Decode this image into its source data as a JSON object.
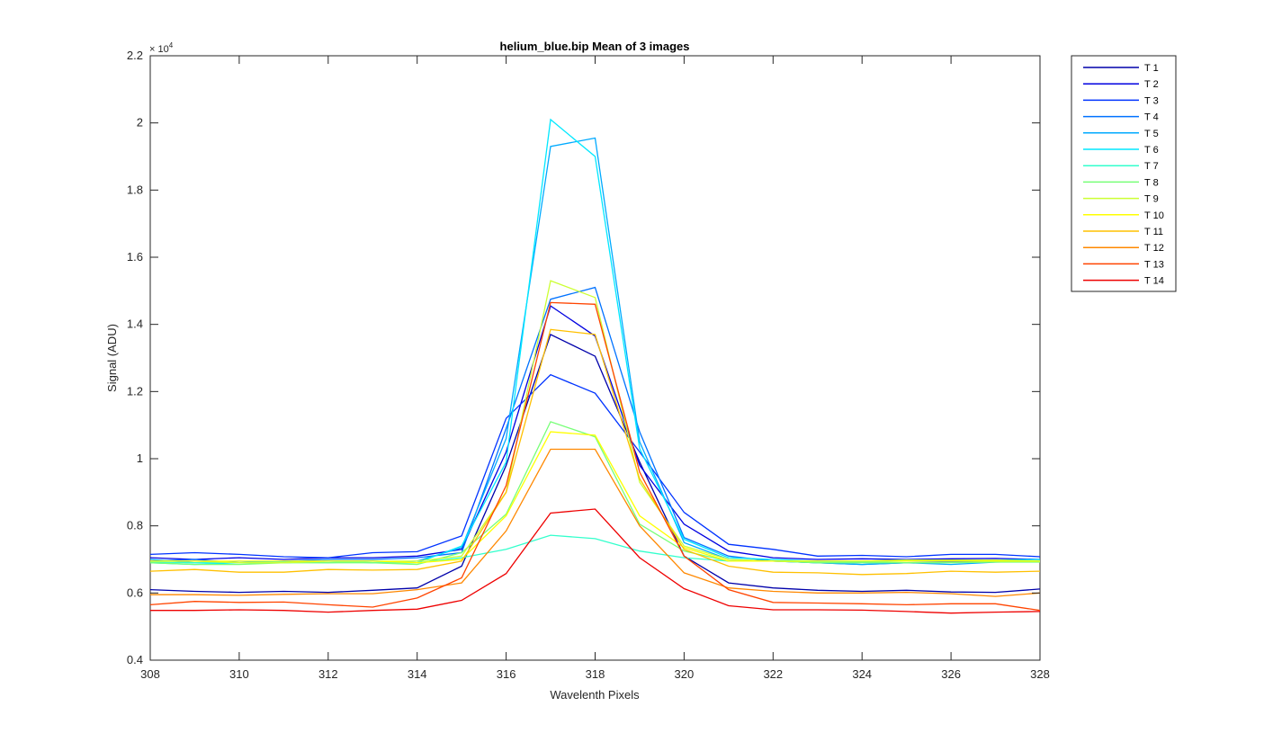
{
  "chart_data": {
    "type": "line",
    "title": "helium_blue.bip  Mean of 3 images",
    "xlabel": "Wavelenth Pixels",
    "ylabel": "Signal (ADU)",
    "y_exponent_label": "× 10",
    "y_exponent_power": "4",
    "xlim": [
      308,
      328
    ],
    "ylim": [
      4000,
      22000
    ],
    "x_ticks": [
      308,
      310,
      312,
      314,
      316,
      318,
      320,
      322,
      324,
      326,
      328
    ],
    "x_tick_labels": [
      "308",
      "310",
      "312",
      "314",
      "316",
      "318",
      "320",
      "322",
      "324",
      "326",
      "328"
    ],
    "y_ticks": [
      4000,
      6000,
      8000,
      10000,
      12000,
      14000,
      16000,
      18000,
      20000,
      22000
    ],
    "y_tick_labels": [
      "0.4",
      "0.6",
      "0.8",
      "1",
      "1.2",
      "1.4",
      "1.6",
      "1.8",
      "2",
      "2.2"
    ],
    "grid": false,
    "legend_position": "outside-right-top",
    "x": [
      308,
      309,
      310,
      311,
      312,
      313,
      314,
      315,
      316,
      317,
      318,
      319,
      320,
      321,
      322,
      323,
      324,
      325,
      326,
      327,
      328
    ],
    "series": [
      {
        "name": "T 1",
        "color": "#0000aa",
        "values": [
          6100,
          6050,
          6020,
          6050,
          6020,
          6080,
          6150,
          6800,
          9800,
          13700,
          13050,
          9900,
          7100,
          6300,
          6150,
          6080,
          6050,
          6080,
          6030,
          6020,
          6120
        ]
      },
      {
        "name": "T 2",
        "color": "#0000e0",
        "values": [
          7050,
          7000,
          7050,
          7000,
          7050,
          7050,
          7100,
          7300,
          10200,
          14550,
          13650,
          9800,
          8050,
          7250,
          7050,
          7000,
          7020,
          7000,
          7020,
          7030,
          7000
        ]
      },
      {
        "name": "T 3",
        "color": "#0033ff",
        "values": [
          7150,
          7200,
          7150,
          7080,
          7050,
          7200,
          7230,
          7700,
          11200,
          12500,
          11950,
          10200,
          8400,
          7450,
          7300,
          7100,
          7120,
          7080,
          7150,
          7150,
          7080
        ]
      },
      {
        "name": "T 4",
        "color": "#0072ff",
        "values": [
          6950,
          7000,
          6900,
          6950,
          7000,
          7000,
          7050,
          7200,
          10900,
          14750,
          15100,
          10800,
          7650,
          7100,
          6950,
          6900,
          6850,
          6900,
          6920,
          6950,
          6950
        ]
      },
      {
        "name": "T 5",
        "color": "#00aaff",
        "values": [
          7000,
          6900,
          6950,
          6900,
          6950,
          6900,
          6950,
          7350,
          10600,
          19300,
          19550,
          10500,
          7500,
          7000,
          6950,
          6900,
          6850,
          6900,
          6850,
          6920,
          6950
        ]
      },
      {
        "name": "T 6",
        "color": "#00e8ff",
        "values": [
          6900,
          6850,
          6900,
          6920,
          6900,
          6950,
          6900,
          7400,
          9900,
          20100,
          19000,
          10300,
          7600,
          7050,
          7000,
          6950,
          6950,
          6980,
          6950,
          6980,
          7000
        ]
      },
      {
        "name": "T 7",
        "color": "#33ffcc",
        "values": [
          6920,
          6900,
          6900,
          6900,
          6950,
          6900,
          6900,
          7050,
          7300,
          7720,
          7620,
          7250,
          7050,
          6950,
          6950,
          6920,
          6920,
          6950,
          6950,
          6980,
          6950
        ]
      },
      {
        "name": "T 8",
        "color": "#77ff77",
        "values": [
          6900,
          6850,
          6850,
          6900,
          6900,
          6900,
          6850,
          7200,
          8350,
          11100,
          10650,
          8050,
          7250,
          6950,
          6950,
          6900,
          6900,
          6900,
          6900,
          6920,
          6920
        ]
      },
      {
        "name": "T 9",
        "color": "#ccff33",
        "values": [
          6950,
          6950,
          6900,
          6900,
          6950,
          6950,
          6950,
          7100,
          9000,
          15300,
          14800,
          9300,
          7400,
          7000,
          6950,
          6950,
          6950,
          6980,
          6980,
          6980,
          6950
        ]
      },
      {
        "name": "T 10",
        "color": "#ffff00",
        "values": [
          6950,
          6950,
          6950,
          6950,
          6950,
          6950,
          6900,
          7000,
          8300,
          10800,
          10700,
          8300,
          7350,
          6950,
          6950,
          6950,
          6950,
          6950,
          6950,
          6950,
          6950
        ]
      },
      {
        "name": "T 11",
        "color": "#ffc000",
        "values": [
          6650,
          6700,
          6620,
          6620,
          6700,
          6680,
          6700,
          6950,
          9000,
          13850,
          13700,
          9400,
          7300,
          6800,
          6620,
          6600,
          6550,
          6580,
          6650,
          6620,
          6650
        ]
      },
      {
        "name": "T 12",
        "color": "#ff8800",
        "values": [
          5950,
          5950,
          5930,
          5960,
          5980,
          5980,
          6100,
          6300,
          7850,
          10280,
          10280,
          8000,
          6600,
          6150,
          6050,
          6000,
          6000,
          6020,
          5980,
          5900,
          6000
        ]
      },
      {
        "name": "T 13",
        "color": "#ff4400",
        "values": [
          5650,
          5750,
          5720,
          5730,
          5650,
          5580,
          5850,
          6450,
          9200,
          14650,
          14600,
          9600,
          7100,
          6100,
          5720,
          5700,
          5680,
          5650,
          5680,
          5680,
          5480
        ]
      },
      {
        "name": "T 14",
        "color": "#ee0000",
        "values": [
          5480,
          5480,
          5500,
          5480,
          5430,
          5480,
          5520,
          5780,
          6580,
          8380,
          8500,
          7050,
          6130,
          5620,
          5500,
          5500,
          5490,
          5450,
          5400,
          5430,
          5450
        ]
      }
    ]
  }
}
